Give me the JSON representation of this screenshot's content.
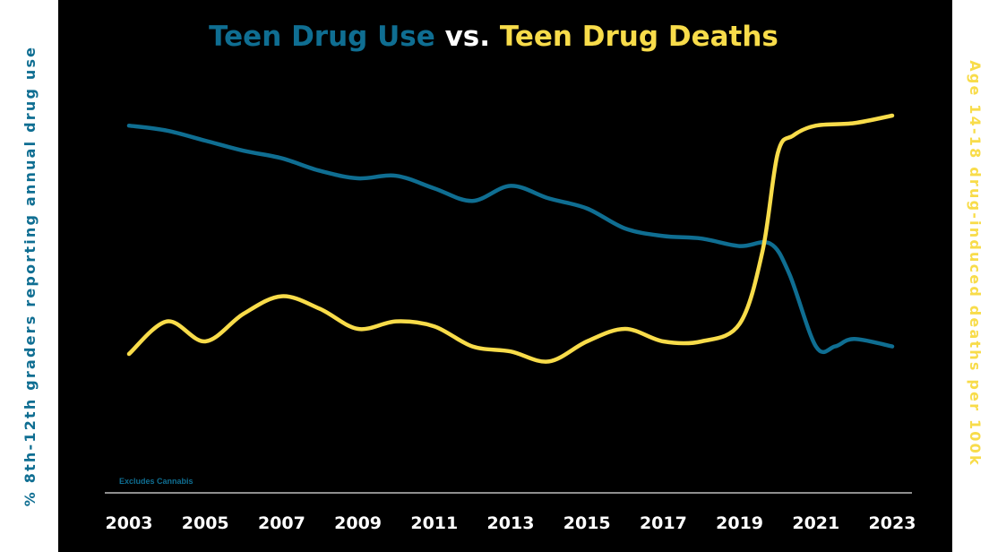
{
  "chart_data": {
    "type": "line",
    "title_parts": [
      "Teen Drug Use",
      " vs. ",
      "Teen Drug Deaths"
    ],
    "ylabel_left": "% 8th-12th graders reporting annual drug use",
    "ylabel_right": "Age 14-18 drug-induced deaths per 100k",
    "note": "Excludes Cannabis",
    "x_ticks": [
      "2003",
      "2005",
      "2007",
      "2009",
      "2011",
      "2013",
      "2015",
      "2017",
      "2019",
      "2021",
      "2023"
    ],
    "xlim": [
      2003,
      2023
    ],
    "ylim": [
      0,
      100
    ],
    "y_axis_labels_shown": false,
    "grid": false,
    "series": [
      {
        "name": "Teen Drug Use",
        "color": "#0f6e92",
        "x": [
          2003,
          2004,
          2005,
          2006,
          2007,
          2008,
          2009,
          2010,
          2011,
          2012,
          2013,
          2014,
          2015,
          2016,
          2017,
          2018,
          2019,
          2019.8,
          2020.3,
          2021,
          2021.5,
          2022,
          2023
        ],
        "values": [
          91,
          89,
          85,
          81,
          78,
          73,
          70,
          71,
          66,
          61,
          67,
          62,
          58,
          50,
          47,
          46,
          43,
          44,
          32,
          3,
          3,
          6,
          3
        ]
      },
      {
        "name": "Teen Drug Deaths",
        "color": "#f8dc4a",
        "x": [
          2003,
          2004,
          2005,
          2006,
          2007,
          2008,
          2009,
          2010,
          2011,
          2012,
          2013,
          2014,
          2015,
          2016,
          2017,
          2018,
          2019,
          2019.6,
          2020,
          2020.4,
          2021,
          2022,
          2023
        ],
        "values": [
          0,
          13,
          5,
          16,
          23,
          18,
          10,
          13,
          11,
          3,
          1,
          -3,
          5,
          10,
          5,
          5,
          12,
          41,
          80,
          87,
          91,
          92,
          95
        ]
      }
    ]
  },
  "colors": {
    "background": "#000000",
    "use_blue": "#0f6e92",
    "death_yellow": "#f8dc4a",
    "white": "#ffffff",
    "baseline": "#bdbdbd"
  }
}
